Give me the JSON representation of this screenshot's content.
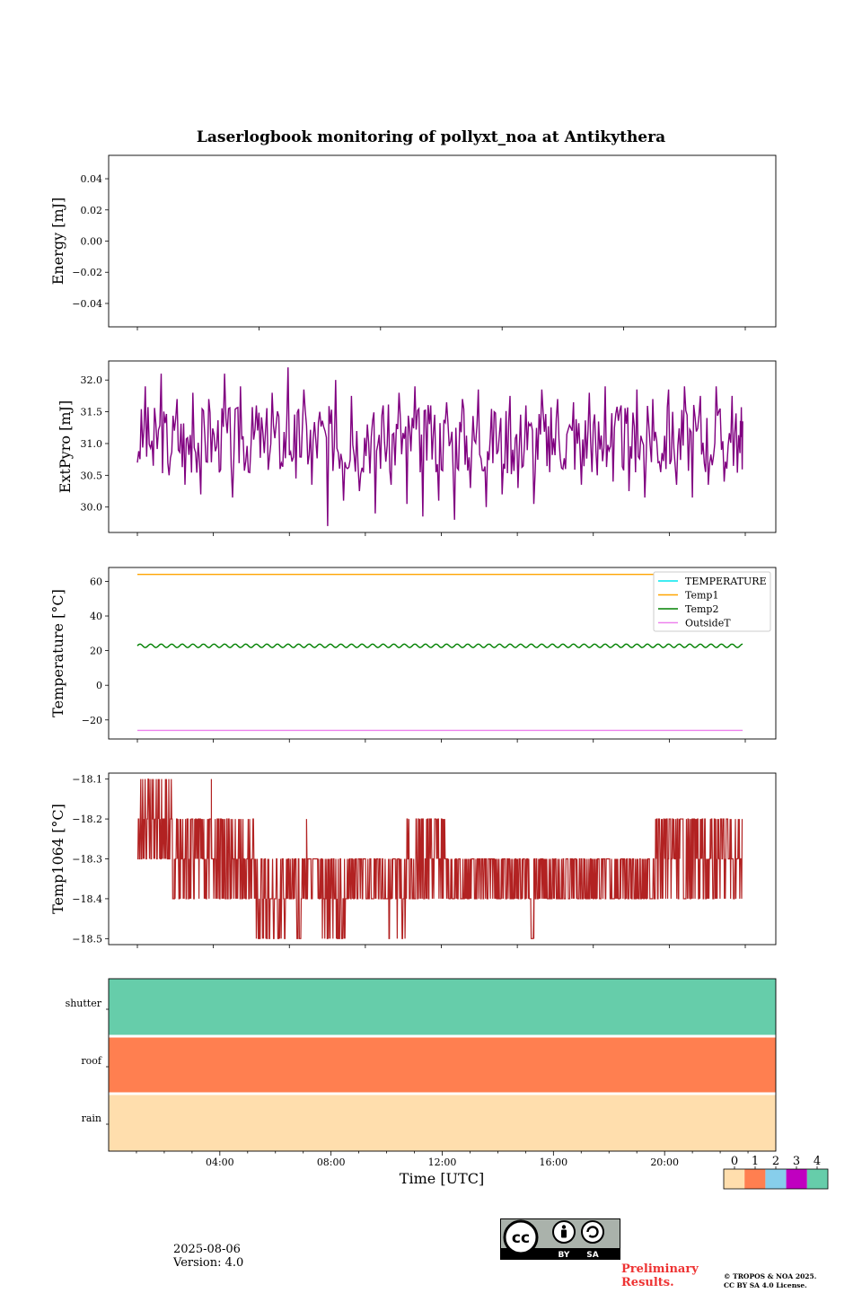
{
  "figure": {
    "title": "Laserlogbook monitoring of pollyxt_noa at Antikythera",
    "xlabel": "Time [UTC]",
    "date": "2025-08-06",
    "version": "Version: 4.0",
    "preliminary_line1": "Preliminary",
    "preliminary_line2": "Results.",
    "copyright_line1": "© TROPOS & NOA 2025.",
    "copyright_line2": "CC BY SA 4.0 License.",
    "cc_badge": {
      "by": "BY",
      "sa": "SA",
      "icon": "cc-by-sa-icon"
    }
  },
  "chart_data": [
    {
      "type": "line",
      "ylabel": "Energy [mJ]",
      "ylim": [
        -0.055,
        0.055
      ],
      "yticks": [
        0.04,
        0.02,
        0.0,
        -0.02,
        -0.04
      ],
      "ytick_labels": [
        "0.04",
        "0.02",
        "0.00",
        "−0.02",
        "−0.04"
      ],
      "xlim_hours": [
        1.0,
        24.0
      ],
      "series": []
    },
    {
      "type": "line",
      "ylabel": "ExtPyro [mJ]",
      "ylim": [
        29.6,
        32.3
      ],
      "yticks": [
        32.0,
        31.5,
        31.0,
        30.5,
        30.0
      ],
      "ytick_labels": [
        "32.0",
        "31.5",
        "31.0",
        "30.5",
        "30.0"
      ],
      "xlim_hours": [
        1.0,
        24.0
      ],
      "series": [
        {
          "color": "#800080",
          "x_hours": [
            1.0,
            1.3,
            1.6,
            1.9,
            2.2,
            2.5,
            2.8,
            3.1,
            3.4,
            3.7,
            4.0,
            4.3,
            4.6,
            4.9,
            5.2,
            5.5,
            5.8,
            6.1,
            6.4,
            6.7,
            7.0,
            7.3,
            7.6,
            7.9,
            8.2,
            8.5,
            8.8,
            9.1,
            9.4,
            9.7,
            10.0,
            10.3,
            10.6,
            10.9,
            11.2,
            11.5,
            11.8,
            12.1,
            12.4,
            12.7,
            13.0,
            13.3,
            13.6,
            13.9,
            14.2,
            14.5,
            14.8,
            15.1,
            15.4,
            15.7,
            16.0,
            16.3,
            16.6,
            16.9,
            17.2,
            17.5,
            17.8,
            18.1,
            18.4,
            18.7,
            19.0,
            19.3,
            19.6,
            19.9,
            20.2,
            20.5,
            20.8,
            21.1,
            21.4,
            21.7,
            22.0,
            22.3,
            22.6,
            22.9,
            23.2,
            23.5,
            23.8,
            23.9
          ],
          "y": [
            30.7,
            31.9,
            30.65,
            32.1,
            30.5,
            31.7,
            30.35,
            31.8,
            30.2,
            31.7,
            30.95,
            32.1,
            30.15,
            31.9,
            30.55,
            31.6,
            30.85,
            31.8,
            30.6,
            32.2,
            30.45,
            31.85,
            30.35,
            31.5,
            29.7,
            32.0,
            30.1,
            31.75,
            30.25,
            31.3,
            29.9,
            31.6,
            30.35,
            31.8,
            30.05,
            31.9,
            29.85,
            31.6,
            30.1,
            31.65,
            29.8,
            31.7,
            30.3,
            31.85,
            30.0,
            31.5,
            30.2,
            31.75,
            30.3,
            31.6,
            30.05,
            31.85,
            30.55,
            31.7,
            30.6,
            31.65,
            30.35,
            31.8,
            30.5,
            31.9,
            30.4,
            31.6,
            30.25,
            31.85,
            30.15,
            31.7,
            30.55,
            31.85,
            30.35,
            31.9,
            30.15,
            31.75,
            30.35,
            31.9,
            30.4,
            31.75,
            30.85,
            31.35
          ]
        }
      ]
    },
    {
      "type": "line",
      "ylabel": "Temperature [°C]",
      "ylim": [
        -31,
        68
      ],
      "yticks": [
        60,
        40,
        20,
        0,
        -20
      ],
      "ytick_labels": [
        "60",
        "40",
        "20",
        "0",
        "−20"
      ],
      "xlim_hours": [
        1.0,
        24.0
      ],
      "legend_placement": "upper right",
      "series": [
        {
          "name": "TEMPERATURE",
          "color": "#00e5ee",
          "x_hours": [],
          "y": []
        },
        {
          "name": "Temp1",
          "color": "#ffa500",
          "x_hours": [
            1.0,
            23.9
          ],
          "y": [
            64,
            64
          ]
        },
        {
          "name": "Temp2",
          "color": "#008000",
          "x_hours": [
            1.0,
            23.9
          ],
          "y": [
            22.8,
            22.8
          ],
          "oscillation_amplitude": 1.0,
          "oscillation_period_hours": 0.4
        },
        {
          "name": "OutsideT",
          "color": "#ee82ee",
          "x_hours": [
            1.0,
            23.9
          ],
          "y": [
            -26,
            -26
          ]
        }
      ]
    },
    {
      "type": "line",
      "ylabel": "Temp1064 [°C]",
      "ylim": [
        -18.515,
        -18.085
      ],
      "yticks": [
        -18.1,
        -18.2,
        -18.3,
        -18.4,
        -18.5
      ],
      "ytick_labels": [
        "−18.1",
        "−18.2",
        "−18.3",
        "−18.4",
        "−18.5"
      ],
      "xlim_hours": [
        1.0,
        24.0
      ],
      "series": [
        {
          "color": "#b22222",
          "segments": [
            {
              "from": 1.0,
              "to": 2.3,
              "values": [
                -18.2,
                -18.3,
                -18.1
              ]
            },
            {
              "from": 2.3,
              "to": 4.0,
              "values": [
                -18.2,
                -18.3,
                -18.4
              ]
            },
            {
              "from": 4.0,
              "to": 5.5,
              "values": [
                -18.3,
                -18.4,
                -18.2
              ]
            },
            {
              "from": 5.5,
              "to": 7.2,
              "values": [
                -18.3,
                -18.4,
                -18.5
              ]
            },
            {
              "from": 7.2,
              "to": 8.0,
              "values": [
                -18.3,
                -18.4
              ]
            },
            {
              "from": 8.0,
              "to": 9.0,
              "values": [
                -18.3,
                -18.4,
                -18.5
              ]
            },
            {
              "from": 9.0,
              "to": 10.5,
              "values": [
                -18.3,
                -18.4
              ]
            },
            {
              "from": 10.5,
              "to": 11.2,
              "values": [
                -18.3,
                -18.4,
                -18.5
              ]
            },
            {
              "from": 11.2,
              "to": 12.7,
              "values": [
                -18.2,
                -18.3,
                -18.4
              ]
            },
            {
              "from": 12.7,
              "to": 15.9,
              "values": [
                -18.3,
                -18.4
              ]
            },
            {
              "from": 15.9,
              "to": 16.0,
              "values": [
                -18.5
              ]
            },
            {
              "from": 16.0,
              "to": 20.5,
              "values": [
                -18.3,
                -18.4
              ]
            },
            {
              "from": 20.5,
              "to": 23.9,
              "values": [
                -18.2,
                -18.3,
                -18.4
              ]
            }
          ],
          "spikes": [
            {
              "x": 3.8,
              "y": -18.1
            },
            {
              "x": 7.4,
              "y": -18.2
            },
            {
              "x": 16.0,
              "y": -18.5
            },
            {
              "x": 2.4,
              "y": -18.4
            }
          ]
        }
      ]
    },
    {
      "type": "heatmap",
      "rows": [
        "shutter",
        "roof",
        "rain"
      ],
      "row_status": [
        4,
        1,
        0
      ],
      "xlim_hours": [
        0.0,
        24.0
      ],
      "xticks_hours": [
        4,
        8,
        12,
        16,
        20
      ],
      "xtick_labels": [
        "04:00",
        "08:00",
        "12:00",
        "16:00",
        "20:00"
      ],
      "colorbar": {
        "labels": [
          "0",
          "1",
          "2",
          "3",
          "4"
        ],
        "colors": [
          "#ffdead",
          "#ff7f50",
          "#87ceeb",
          "#c000c0",
          "#66cdaa"
        ]
      }
    }
  ]
}
